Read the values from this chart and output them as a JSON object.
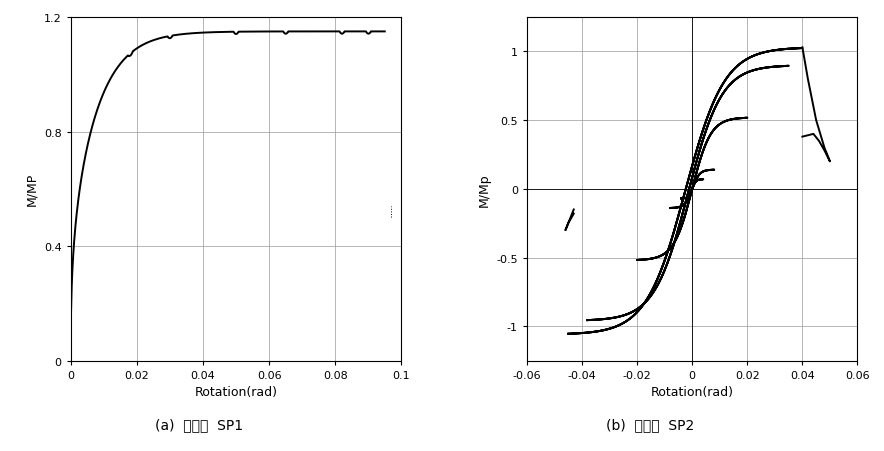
{
  "sp1": {
    "xlabel": "Rotation(rad)",
    "ylabel": "M/MP",
    "xlim": [
      0,
      0.1
    ],
    "ylim": [
      0,
      1.2
    ],
    "xticks": [
      0,
      0.02,
      0.04,
      0.06,
      0.08,
      0.1
    ],
    "yticks": [
      0,
      0.4,
      0.8,
      1.2
    ],
    "xticklabels": [
      "0",
      "0.02",
      "0.04",
      "0.06",
      "0.08",
      "0.1"
    ],
    "yticklabels": [
      "0",
      "0.4",
      "0.8",
      "1.2"
    ],
    "caption": "(a)  시험체  SP1"
  },
  "sp2": {
    "xlabel": "Rotation(rad)",
    "ylabel": "M/Mp",
    "xlim": [
      -0.06,
      0.06
    ],
    "ylim": [
      -1.25,
      1.25
    ],
    "xticks": [
      -0.06,
      -0.04,
      -0.02,
      0,
      0.02,
      0.04,
      0.06
    ],
    "yticks": [
      -1.0,
      -0.5,
      0,
      0.5,
      1.0
    ],
    "xticklabels": [
      "-0.06",
      "-0.04",
      "-0.02",
      "0",
      "0.02",
      "0.04",
      "0.06"
    ],
    "yticklabels": [
      "-1",
      "-0.5",
      "0",
      "0.5",
      "1"
    ],
    "caption": "(b)  시험체  SP2"
  },
  "line_color": "#000000",
  "line_width": 1.4,
  "grid_color": "#999999",
  "background_color": "#ffffff"
}
